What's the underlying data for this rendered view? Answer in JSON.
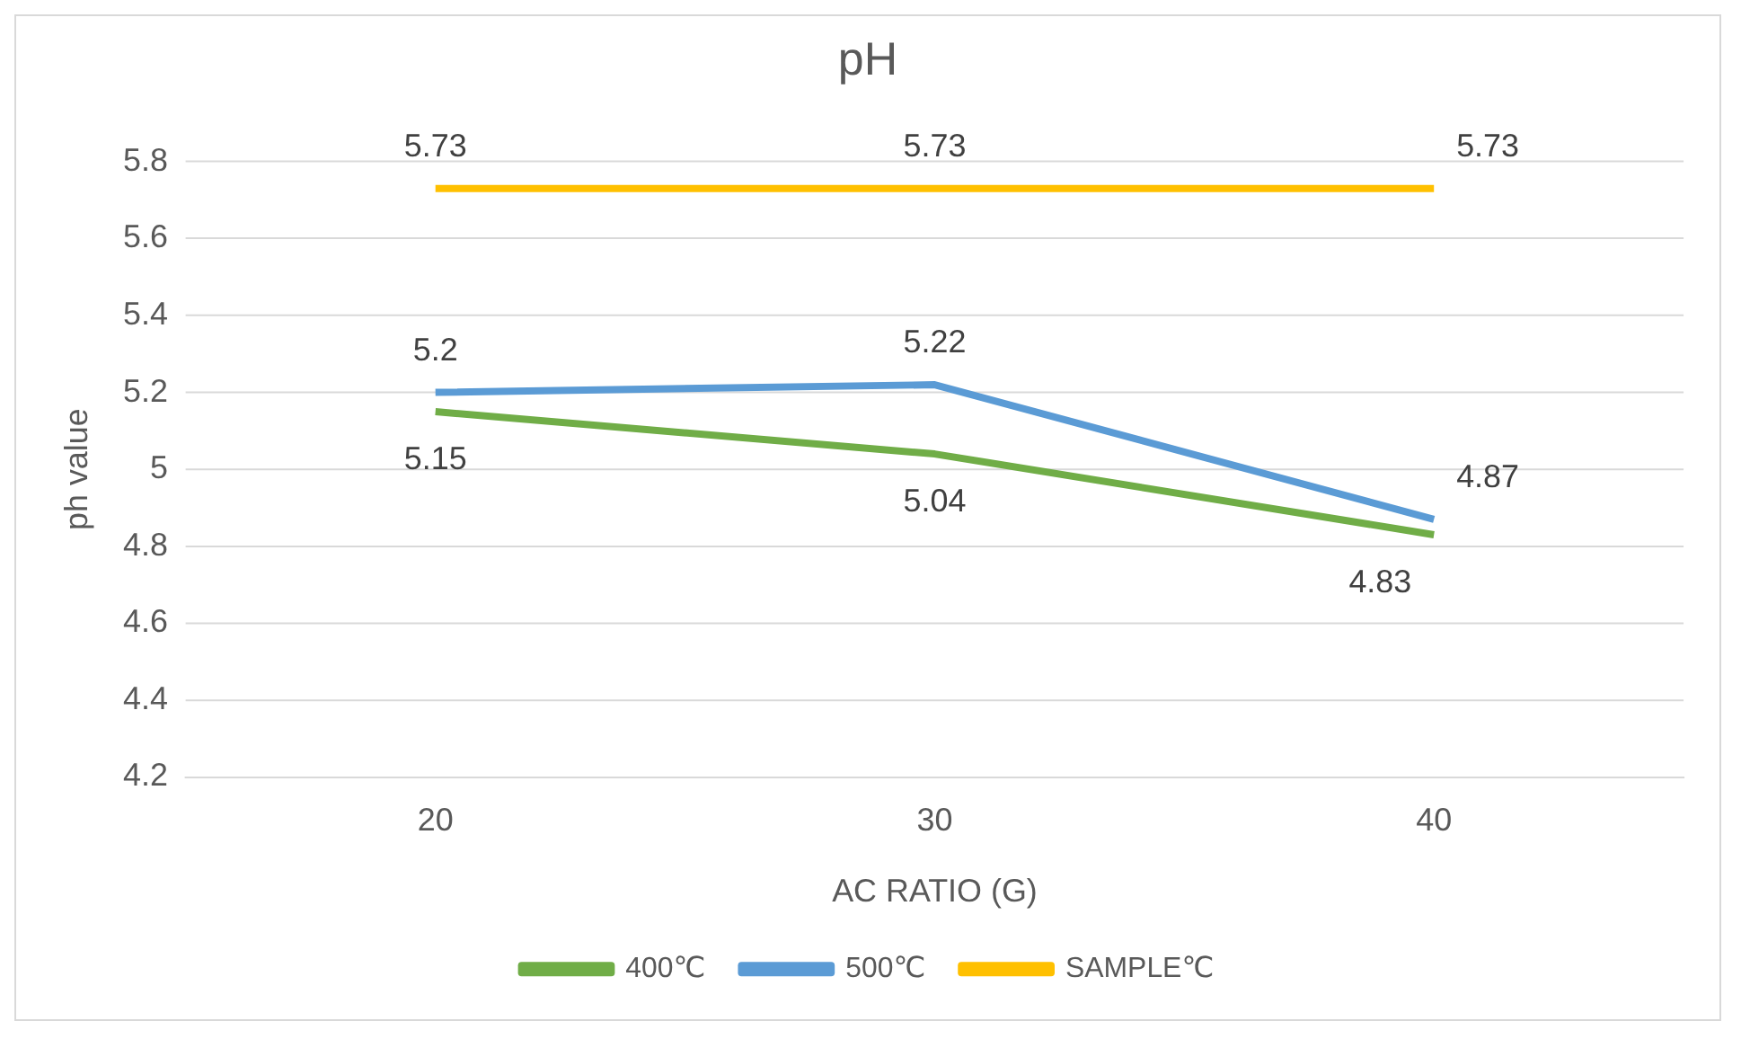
{
  "chart_data": {
    "type": "line",
    "title": "pH",
    "xlabel": "AC RATIO (G)",
    "ylabel": "ph value",
    "categories": [
      "20",
      "30",
      "40"
    ],
    "series": [
      {
        "name": "400℃",
        "color": "#70ad47",
        "values": [
          5.15,
          5.04,
          4.83
        ]
      },
      {
        "name": "500℃",
        "color": "#5b9bd5",
        "values": [
          5.2,
          5.22,
          4.87
        ]
      },
      {
        "name": "SAMPLE℃",
        "color": "#ffc000",
        "values": [
          5.73,
          5.73,
          5.73
        ]
      }
    ],
    "ylim": [
      4.2,
      5.8
    ],
    "yticks": [
      4.2,
      4.4,
      4.6,
      4.8,
      5,
      5.2,
      5.4,
      5.6,
      5.8
    ],
    "grid": "y",
    "legend": "bottom",
    "data_labels": true,
    "marker": "none",
    "line_style": "solid"
  }
}
